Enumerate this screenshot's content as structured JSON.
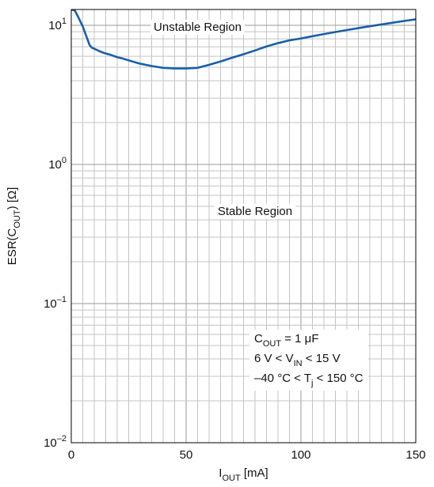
{
  "chart_data": {
    "type": "line",
    "title": "",
    "xlabel": {
      "main": "I",
      "sub": "OUT",
      "unit": " [mA]"
    },
    "ylabel": {
      "pre": "ESR(C",
      "sub": "OUT",
      "post": ") [Ω]"
    },
    "x_axis": {
      "min": 0,
      "max": 150,
      "ticks": [
        0,
        50,
        100,
        150
      ],
      "tick_labels": [
        "0",
        "50",
        "100",
        "150"
      ],
      "minor_step": 5
    },
    "y_axis": {
      "scale": "log",
      "min": 0.01,
      "max": 13,
      "ticks": [
        {
          "value": 10,
          "base": "10",
          "exp": "1"
        },
        {
          "value": 1,
          "base": "10",
          "exp": "0"
        },
        {
          "value": 0.1,
          "base": "10",
          "exp": "–1"
        },
        {
          "value": 0.01,
          "base": "10",
          "exp": "–2"
        }
      ]
    },
    "grid": true,
    "line_color": "#1a5fa8",
    "series": [
      {
        "name": "",
        "x": [
          0,
          1.5,
          3,
          5,
          6.5,
          8,
          9,
          10,
          12,
          14,
          17,
          20,
          22,
          25,
          30,
          35,
          40,
          45,
          50,
          55,
          60,
          65,
          70,
          75,
          80,
          85,
          90,
          95,
          100,
          105,
          110,
          115,
          120,
          125,
          130,
          135,
          140,
          145,
          150
        ],
        "y": [
          13,
          12.8,
          11.5,
          9.8,
          8.4,
          7.2,
          6.9,
          6.8,
          6.55,
          6.35,
          6.15,
          5.9,
          5.8,
          5.6,
          5.3,
          5.1,
          4.95,
          4.9,
          4.9,
          4.95,
          5.2,
          5.5,
          5.85,
          6.2,
          6.6,
          7.05,
          7.45,
          7.8,
          8.05,
          8.35,
          8.65,
          8.95,
          9.25,
          9.55,
          9.85,
          10.15,
          10.45,
          10.75,
          11.05
        ]
      }
    ],
    "annotations": {
      "unstable": "Unstable Region",
      "stable": "Stable Region",
      "conditions": [
        {
          "pre": "C",
          "sub": "OUT",
          "post": " = 1 μF"
        },
        {
          "pre": "6 V < V",
          "sub": "IN",
          "post": " < 15 V"
        },
        {
          "pre": "–40 °C < T",
          "sub": "j",
          "post": " < 150 °C"
        }
      ]
    }
  }
}
